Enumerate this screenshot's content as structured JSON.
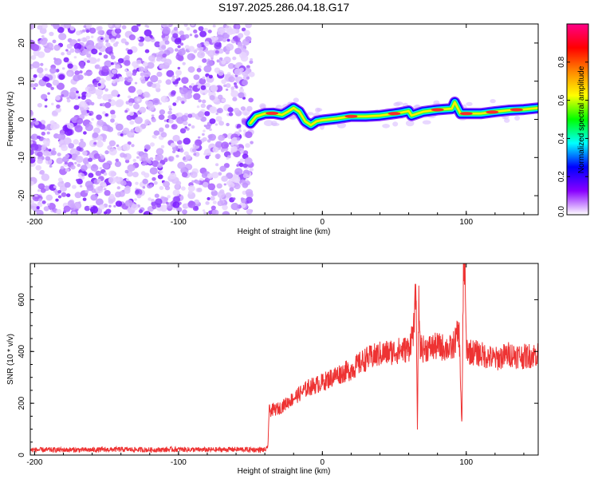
{
  "title": "S197.2025.286.04.18.G17",
  "chart_data": [
    {
      "type": "heatmap",
      "xlabel": "Height of straight line (km)",
      "ylabel": "Frequency (Hz)",
      "xlim": [
        -203,
        150
      ],
      "ylim": [
        -25,
        25
      ],
      "xticks": [
        -200,
        -100,
        0,
        100
      ],
      "yticks": [
        -20,
        -10,
        0,
        10,
        20
      ],
      "noise_region_x": [
        -203,
        -49
      ],
      "ridge": {
        "x": [
          -50,
          -46,
          -40,
          -34,
          -28,
          -24,
          -20,
          -16,
          -12,
          -8,
          -4,
          0,
          10,
          20,
          30,
          40,
          50,
          55,
          60,
          62,
          70,
          80,
          90,
          92,
          96,
          100,
          110,
          120,
          130,
          140,
          150
        ],
        "freq": [
          -1.0,
          0.8,
          1.5,
          1.6,
          1.2,
          2.0,
          3.0,
          2.0,
          -0.5,
          -1.5,
          -0.5,
          -0.2,
          0.2,
          0.8,
          0.8,
          1.0,
          1.5,
          1.8,
          2.2,
          1.0,
          2.0,
          2.5,
          2.8,
          4.5,
          1.5,
          1.5,
          1.5,
          2.0,
          2.4,
          2.6,
          3.0
        ]
      },
      "colorbar": {
        "label": "Normalized spectral amplitude",
        "range": [
          0.0,
          1.0
        ],
        "ticks": [
          "0.0",
          "0.2",
          "0.4",
          "0.6",
          "0.8"
        ],
        "tick_values": [
          0.0,
          0.2,
          0.4,
          0.6,
          0.8
        ],
        "colors": [
          "#ffffff",
          "#8800ff",
          "#0000ff",
          "#00ffff",
          "#00ff00",
          "#ffff00",
          "#ff8800",
          "#ff0000",
          "#ff0088"
        ]
      }
    },
    {
      "type": "line",
      "xlabel": "Height of straight line (km)",
      "ylabel": "SNR (10 * v/v)",
      "xlim": [
        -203,
        150
      ],
      "ylim": [
        0,
        740
      ],
      "xticks": [
        -200,
        -100,
        0,
        100
      ],
      "yticks": [
        0,
        200,
        400,
        600
      ],
      "series": [
        {
          "color": "#ee3333",
          "x": [
            -203,
            -180,
            -160,
            -140,
            -120,
            -100,
            -80,
            -60,
            -40,
            -38,
            -37,
            -30,
            -20,
            -10,
            0,
            10,
            20,
            30,
            40,
            50,
            60,
            64,
            65,
            66,
            67,
            68,
            70,
            80,
            90,
            95,
            97,
            98,
            99,
            100,
            102,
            110,
            120,
            130,
            140,
            150
          ],
          "values": [
            20,
            20,
            20,
            22,
            20,
            22,
            20,
            22,
            20,
            25,
            170,
            180,
            220,
            260,
            280,
            310,
            330,
            370,
            390,
            400,
            410,
            500,
            700,
            90,
            600,
            420,
            410,
            420,
            410,
            480,
            100,
            700,
            740,
            420,
            400,
            390,
            370,
            390,
            380,
            390
          ]
        }
      ]
    }
  ]
}
